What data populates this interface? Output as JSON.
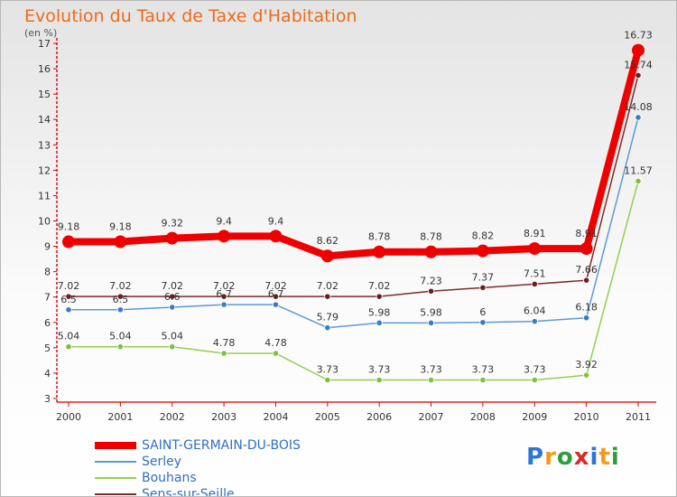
{
  "header": {
    "title": "Evolution du Taux de Taxe d'Habitation",
    "subtitle": "(en %)"
  },
  "colors": {
    "saint": "#ee0000",
    "serley": "#5b9bd5",
    "bouhans": "#92d050",
    "sens": "#7b2c2c",
    "title": "#ee6a1a"
  },
  "chart_data": {
    "type": "line",
    "x": [
      "2000",
      "2001",
      "2002",
      "2003",
      "2004",
      "2005",
      "2006",
      "2007",
      "2008",
      "2009",
      "2010",
      "2011"
    ],
    "ylim": [
      3,
      17
    ],
    "yticks": [
      "3",
      "4",
      "5",
      "6",
      "7",
      "8",
      "9",
      "10",
      "11",
      "12",
      "13",
      "14",
      "15",
      "16",
      "17"
    ],
    "grid": false,
    "legend": "bottom-left",
    "series": [
      {
        "name": "SAINT-GERMAIN-DU-BOIS",
        "color": "#ee0000",
        "values": [
          9.18,
          9.18,
          9.32,
          9.4,
          9.4,
          8.62,
          8.78,
          8.78,
          8.82,
          8.91,
          8.91,
          16.73
        ],
        "labels": [
          "9.18",
          "9.18",
          "9.32",
          "9.4",
          "9.4",
          "8.62",
          "8.78",
          "8.78",
          "8.82",
          "8.91",
          "8.91",
          "16.73"
        ]
      },
      {
        "name": "Serley",
        "color": "#5b9bd5",
        "values": [
          6.5,
          6.5,
          6.6,
          6.7,
          6.7,
          5.79,
          5.98,
          5.98,
          6,
          6.04,
          6.18,
          14.08
        ],
        "labels": [
          "6.5",
          "6.5",
          "6.6",
          "6.7",
          "6.7",
          "5.79",
          "5.98",
          "5.98",
          "6",
          "6.04",
          "6.18",
          "14.08"
        ]
      },
      {
        "name": "Bouhans",
        "color": "#92d050",
        "values": [
          5.04,
          5.04,
          5.04,
          4.78,
          4.78,
          3.73,
          3.73,
          3.73,
          3.73,
          3.73,
          3.92,
          11.57
        ],
        "labels": [
          "5.04",
          "5.04",
          "5.04",
          "4.78",
          "4.78",
          "3.73",
          "3.73",
          "3.73",
          "3.73",
          "3.73",
          "3.92",
          "11.57"
        ]
      },
      {
        "name": "Sens-sur-Seille",
        "color": "#7b2c2c",
        "values": [
          7.02,
          7.02,
          7.02,
          7.02,
          7.02,
          7.02,
          7.02,
          7.23,
          7.37,
          7.51,
          7.66,
          15.74
        ],
        "labels": [
          "7.02",
          "7.02",
          "7.02",
          "7.02",
          "7.02",
          "7.02",
          "7.02",
          "7.23",
          "7.37",
          "7.51",
          "7.66",
          "15.74"
        ]
      }
    ]
  },
  "logo": {
    "letters": [
      "P",
      "r",
      "o",
      "x",
      "i",
      "t",
      "i"
    ],
    "colors": [
      "#2e75d6",
      "#f29a1a",
      "#2e9e3a",
      "#d92b2b",
      "#2e75d6",
      "#f29a1a",
      "#2e9e3a"
    ]
  }
}
